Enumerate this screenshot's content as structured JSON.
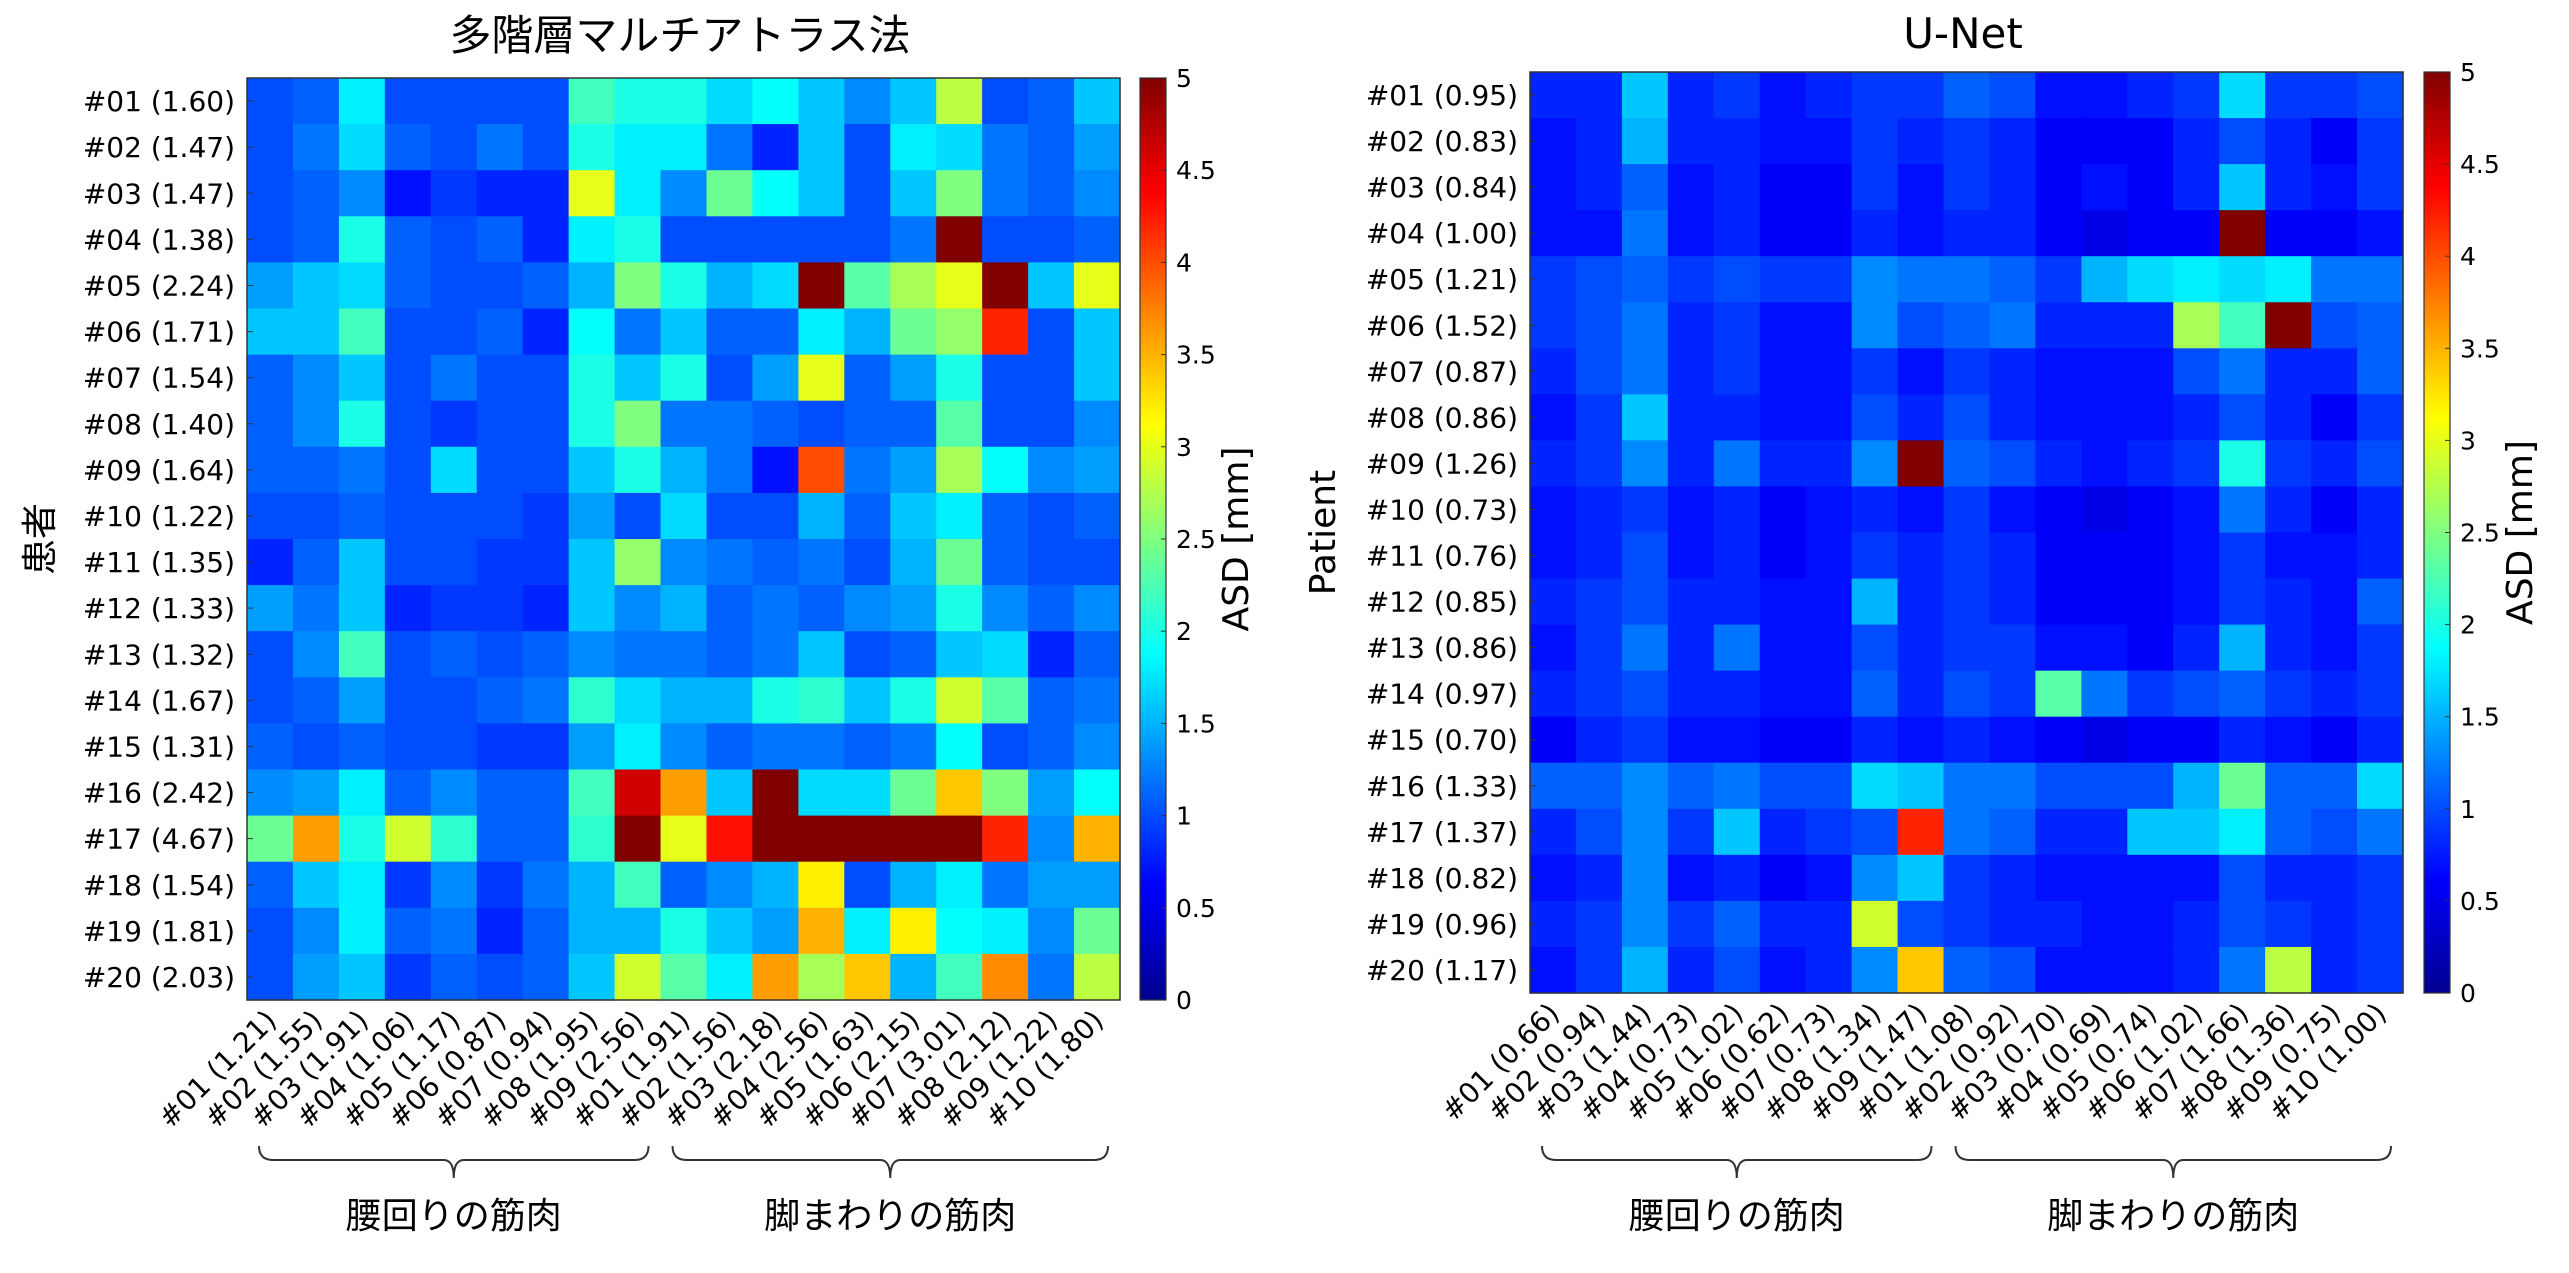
{
  "chart_data": [
    {
      "type": "heatmap",
      "title": "多階層マルチアトラス法",
      "ylabel": "患者",
      "colorbar_label": "ASD [mm]",
      "colorbar_ticks": [
        "0",
        "0.5",
        "1",
        "1.5",
        "2",
        "2.5",
        "3",
        "3.5",
        "4",
        "4.5",
        "5"
      ],
      "vmin": 0,
      "vmax": 5,
      "colormap": "jet",
      "rows": [
        "#01 (1.60)",
        "#02 (1.47)",
        "#03 (1.47)",
        "#04 (1.38)",
        "#05 (2.24)",
        "#06 (1.71)",
        "#07 (1.54)",
        "#08 (1.40)",
        "#09 (1.64)",
        "#10 (1.22)",
        "#11 (1.35)",
        "#12 (1.33)",
        "#13 (1.32)",
        "#14 (1.67)",
        "#15 (1.31)",
        "#16 (2.42)",
        "#17 (4.67)",
        "#18 (1.54)",
        "#19 (1.81)",
        "#20 (2.03)"
      ],
      "columns": [
        "#01 (1.21)",
        "#02 (1.55)",
        "#03 (1.91)",
        "#04 (1.06)",
        "#05 (1.17)",
        "#06 (0.87)",
        "#07 (0.94)",
        "#08 (1.95)",
        "#09 (2.56)",
        "#01 (1.91)",
        "#02 (1.56)",
        "#03 (2.18)",
        "#04 (2.56)",
        "#05 (1.63)",
        "#06 (2.15)",
        "#07 (3.01)",
        "#08 (2.12)",
        "#09 (1.22)",
        "#10 (1.80)"
      ],
      "groups": [
        {
          "label": "腰回りの筋肉",
          "start": 0,
          "end": 8
        },
        {
          "label": "脚まわりの筋肉",
          "start": 9,
          "end": 18
        }
      ],
      "values": [
        [
          1.0,
          1.1,
          1.8,
          1.0,
          1.0,
          1.0,
          1.0,
          2.2,
          2.0,
          2.0,
          1.7,
          1.9,
          1.6,
          1.3,
          1.6,
          2.8,
          1.0,
          1.1,
          1.6
        ],
        [
          1.0,
          1.2,
          1.7,
          1.1,
          1.0,
          1.2,
          1.0,
          2.0,
          1.8,
          1.8,
          1.2,
          0.8,
          1.6,
          1.0,
          1.8,
          1.7,
          1.2,
          1.1,
          1.4
        ],
        [
          1.0,
          1.1,
          1.3,
          0.7,
          0.9,
          0.8,
          0.8,
          3.0,
          1.8,
          1.3,
          2.4,
          1.9,
          1.6,
          1.0,
          1.6,
          2.5,
          1.2,
          1.1,
          1.3
        ],
        [
          1.0,
          1.1,
          2.0,
          1.1,
          1.0,
          1.1,
          0.8,
          1.8,
          2.0,
          1.0,
          1.0,
          1.0,
          1.0,
          1.0,
          1.2,
          5.0,
          1.0,
          1.0,
          1.1
        ],
        [
          1.4,
          1.6,
          1.7,
          1.1,
          1.0,
          1.0,
          1.1,
          1.5,
          2.5,
          2.0,
          1.5,
          1.7,
          5.0,
          2.3,
          2.7,
          3.0,
          5.0,
          1.6,
          3.0
        ],
        [
          1.6,
          1.6,
          2.2,
          1.0,
          1.0,
          1.1,
          0.8,
          1.9,
          1.2,
          1.6,
          1.1,
          1.1,
          1.8,
          1.5,
          2.4,
          2.6,
          4.2,
          1.0,
          1.6
        ],
        [
          1.1,
          1.3,
          1.6,
          1.0,
          1.2,
          1.0,
          1.0,
          2.0,
          1.6,
          2.0,
          1.0,
          1.4,
          3.0,
          1.1,
          1.4,
          2.0,
          1.0,
          1.0,
          1.6
        ],
        [
          1.1,
          1.3,
          2.0,
          1.0,
          0.9,
          1.0,
          1.0,
          2.0,
          2.5,
          1.2,
          1.2,
          1.1,
          1.0,
          1.1,
          1.1,
          2.3,
          1.0,
          1.0,
          1.3
        ],
        [
          1.1,
          1.1,
          1.2,
          1.0,
          1.7,
          1.0,
          1.0,
          1.6,
          2.0,
          1.5,
          1.2,
          0.7,
          4.0,
          1.2,
          1.4,
          2.7,
          1.9,
          1.3,
          1.4
        ],
        [
          1.0,
          1.0,
          1.1,
          1.0,
          1.0,
          1.0,
          0.9,
          1.4,
          1.0,
          1.7,
          1.0,
          1.0,
          1.5,
          1.1,
          1.6,
          1.8,
          1.1,
          1.0,
          1.1
        ],
        [
          0.8,
          1.1,
          1.6,
          1.0,
          1.0,
          0.9,
          0.9,
          1.6,
          2.6,
          1.3,
          1.2,
          1.1,
          1.2,
          1.0,
          1.5,
          2.4,
          1.1,
          1.0,
          1.0
        ],
        [
          1.4,
          1.2,
          1.6,
          0.8,
          0.9,
          0.9,
          0.8,
          1.6,
          1.3,
          1.5,
          1.1,
          1.2,
          1.1,
          1.3,
          1.4,
          2.0,
          1.3,
          1.1,
          1.3
        ],
        [
          1.0,
          1.3,
          2.2,
          1.0,
          1.1,
          1.0,
          1.1,
          1.3,
          1.2,
          1.2,
          1.1,
          1.2,
          1.6,
          1.0,
          1.1,
          1.6,
          1.7,
          0.8,
          1.1
        ],
        [
          1.0,
          1.1,
          1.4,
          1.0,
          1.0,
          1.1,
          1.2,
          2.1,
          1.7,
          1.5,
          1.5,
          2.0,
          2.1,
          1.6,
          2.0,
          2.9,
          2.3,
          1.1,
          1.2
        ],
        [
          1.1,
          1.0,
          1.1,
          1.0,
          1.0,
          0.9,
          0.9,
          1.4,
          1.8,
          1.3,
          1.1,
          1.2,
          1.2,
          1.1,
          1.2,
          1.9,
          1.0,
          1.1,
          1.3
        ],
        [
          1.3,
          1.4,
          1.8,
          1.1,
          1.3,
          1.1,
          1.1,
          2.2,
          4.6,
          3.6,
          1.6,
          5.0,
          1.7,
          1.7,
          2.4,
          3.4,
          2.5,
          1.4,
          1.9
        ],
        [
          2.4,
          3.6,
          2.0,
          2.9,
          2.1,
          1.1,
          1.1,
          2.1,
          5.0,
          3.0,
          4.3,
          5.0,
          5.0,
          5.0,
          5.0,
          5.0,
          4.2,
          1.3,
          3.5
        ],
        [
          1.1,
          1.6,
          1.8,
          0.9,
          1.3,
          0.9,
          1.2,
          1.5,
          2.2,
          1.1,
          1.3,
          1.5,
          3.2,
          1.0,
          1.5,
          1.8,
          1.2,
          1.4,
          1.4
        ],
        [
          1.0,
          1.3,
          1.8,
          1.1,
          1.2,
          0.8,
          1.1,
          1.5,
          1.5,
          2.0,
          1.6,
          1.4,
          3.5,
          1.8,
          3.2,
          1.9,
          1.8,
          1.3,
          2.4
        ],
        [
          1.0,
          1.4,
          1.6,
          0.9,
          1.1,
          1.0,
          1.1,
          1.6,
          2.9,
          2.3,
          1.8,
          3.6,
          2.7,
          3.4,
          1.5,
          2.2,
          3.7,
          1.2,
          2.8
        ]
      ]
    },
    {
      "type": "heatmap",
      "title": "U-Net",
      "ylabel": "Patient",
      "colorbar_label": "ASD [mm]",
      "colorbar_ticks": [
        "0",
        "0.5",
        "1",
        "1.5",
        "2",
        "2.5",
        "3",
        "3.5",
        "4",
        "4.5",
        "5"
      ],
      "vmin": 0,
      "vmax": 5,
      "colormap": "jet",
      "rows": [
        "#01 (0.95)",
        "#02 (0.83)",
        "#03 (0.84)",
        "#04 (1.00)",
        "#05 (1.21)",
        "#06 (1.52)",
        "#07 (0.87)",
        "#08 (0.86)",
        "#09 (1.26)",
        "#10 (0.73)",
        "#11 (0.76)",
        "#12 (0.85)",
        "#13 (0.86)",
        "#14 (0.97)",
        "#15 (0.70)",
        "#16 (1.33)",
        "#17 (1.37)",
        "#18 (0.82)",
        "#19 (0.96)",
        "#20 (1.17)"
      ],
      "columns": [
        "#01 (0.66)",
        "#02 (0.94)",
        "#03 (1.44)",
        "#04 (0.73)",
        "#05 (1.02)",
        "#06 (0.62)",
        "#07 (0.73)",
        "#08 (1.34)",
        "#09 (1.47)",
        "#01 (1.08)",
        "#02 (0.92)",
        "#03 (0.70)",
        "#04 (0.69)",
        "#05 (0.74)",
        "#06 (1.02)",
        "#07 (1.66)",
        "#08 (1.36)",
        "#09 (0.75)",
        "#10 (1.00)"
      ],
      "groups": [
        {
          "label": "腰回りの筋肉",
          "start": 0,
          "end": 8
        },
        {
          "label": "脚まわりの筋肉",
          "start": 9,
          "end": 18
        }
      ],
      "values": [
        [
          0.8,
          0.8,
          1.6,
          0.8,
          0.9,
          0.7,
          0.8,
          0.9,
          0.9,
          1.1,
          1.0,
          0.7,
          0.7,
          0.8,
          0.9,
          1.7,
          0.9,
          0.9,
          1.0
        ],
        [
          0.7,
          0.8,
          1.5,
          0.8,
          0.8,
          0.7,
          0.7,
          0.9,
          0.8,
          0.9,
          0.8,
          0.6,
          0.6,
          0.6,
          0.8,
          1.0,
          0.8,
          0.6,
          0.9
        ],
        [
          0.7,
          0.8,
          1.1,
          0.7,
          0.8,
          0.6,
          0.6,
          0.9,
          0.7,
          0.9,
          0.8,
          0.6,
          0.7,
          0.6,
          0.8,
          1.6,
          0.8,
          0.7,
          0.9
        ],
        [
          0.7,
          0.7,
          1.2,
          0.7,
          0.8,
          0.6,
          0.6,
          0.8,
          0.7,
          0.8,
          0.8,
          0.6,
          0.5,
          0.6,
          0.6,
          5.0,
          0.6,
          0.6,
          0.7
        ],
        [
          0.9,
          1.0,
          1.1,
          0.9,
          1.0,
          0.9,
          0.9,
          1.3,
          1.2,
          1.2,
          1.1,
          0.9,
          1.5,
          1.7,
          1.8,
          1.7,
          1.8,
          1.2,
          1.2
        ],
        [
          0.9,
          1.0,
          1.2,
          0.8,
          0.9,
          0.7,
          0.7,
          1.3,
          1.0,
          1.1,
          1.2,
          0.8,
          0.8,
          0.8,
          2.7,
          2.2,
          5.0,
          1.0,
          1.1
        ],
        [
          0.8,
          1.0,
          1.2,
          0.8,
          0.9,
          0.7,
          0.7,
          0.9,
          0.7,
          0.9,
          0.8,
          0.7,
          0.7,
          0.7,
          1.0,
          1.2,
          0.8,
          0.8,
          1.1
        ],
        [
          0.7,
          0.9,
          1.6,
          0.8,
          0.8,
          0.7,
          0.7,
          1.0,
          0.8,
          1.0,
          0.8,
          0.7,
          0.7,
          0.7,
          0.8,
          1.0,
          0.8,
          0.6,
          0.9
        ],
        [
          0.8,
          0.9,
          1.3,
          0.8,
          1.2,
          0.8,
          0.8,
          1.3,
          5.0,
          1.1,
          1.0,
          0.8,
          0.7,
          0.8,
          0.9,
          2.0,
          0.9,
          0.8,
          1.0
        ],
        [
          0.7,
          0.8,
          0.9,
          0.7,
          0.8,
          0.6,
          0.7,
          0.8,
          0.7,
          0.9,
          0.7,
          0.6,
          0.5,
          0.6,
          0.7,
          1.2,
          0.8,
          0.6,
          0.8
        ],
        [
          0.7,
          0.8,
          1.0,
          0.7,
          0.8,
          0.6,
          0.7,
          0.9,
          0.8,
          0.9,
          0.8,
          0.6,
          0.6,
          0.6,
          0.7,
          0.9,
          0.7,
          0.7,
          0.8
        ],
        [
          0.8,
          0.9,
          1.0,
          0.8,
          0.8,
          0.7,
          0.7,
          1.5,
          0.8,
          0.9,
          0.8,
          0.6,
          0.6,
          0.6,
          0.7,
          0.9,
          0.8,
          0.7,
          1.1
        ],
        [
          0.7,
          0.9,
          1.2,
          0.8,
          1.2,
          0.7,
          0.7,
          1.0,
          0.8,
          0.9,
          0.9,
          0.7,
          0.7,
          0.6,
          0.8,
          1.5,
          0.8,
          0.7,
          0.9
        ],
        [
          0.8,
          0.9,
          1.0,
          0.8,
          0.8,
          0.7,
          0.7,
          1.1,
          0.8,
          1.0,
          0.9,
          2.3,
          1.2,
          0.9,
          1.0,
          1.1,
          0.9,
          0.8,
          0.9
        ],
        [
          0.6,
          0.8,
          0.9,
          0.7,
          0.7,
          0.6,
          0.6,
          0.8,
          0.7,
          0.8,
          0.7,
          0.6,
          0.5,
          0.6,
          0.6,
          0.8,
          0.7,
          0.6,
          0.8
        ],
        [
          1.1,
          1.1,
          1.3,
          1.1,
          1.2,
          1.0,
          1.0,
          1.7,
          1.6,
          1.2,
          1.2,
          1.0,
          1.0,
          1.0,
          1.5,
          2.4,
          1.1,
          1.1,
          1.7
        ],
        [
          0.8,
          1.0,
          1.3,
          0.9,
          1.6,
          0.8,
          0.9,
          1.0,
          4.2,
          1.2,
          1.1,
          0.8,
          0.8,
          1.6,
          1.6,
          1.8,
          1.1,
          1.0,
          1.2
        ],
        [
          0.7,
          0.8,
          1.3,
          0.7,
          0.8,
          0.6,
          0.7,
          1.3,
          1.6,
          0.9,
          0.8,
          0.7,
          0.7,
          0.7,
          0.7,
          1.0,
          0.8,
          0.8,
          0.9
        ],
        [
          0.8,
          0.9,
          1.3,
          0.9,
          1.1,
          0.8,
          0.8,
          2.9,
          1.0,
          0.9,
          0.8,
          0.8,
          0.7,
          0.7,
          0.8,
          1.0,
          0.9,
          0.8,
          0.9
        ],
        [
          0.7,
          0.9,
          1.5,
          0.8,
          1.0,
          0.7,
          0.8,
          1.3,
          3.4,
          1.1,
          1.0,
          0.7,
          0.7,
          0.7,
          0.8,
          1.2,
          2.8,
          0.8,
          0.9
        ]
      ]
    }
  ]
}
